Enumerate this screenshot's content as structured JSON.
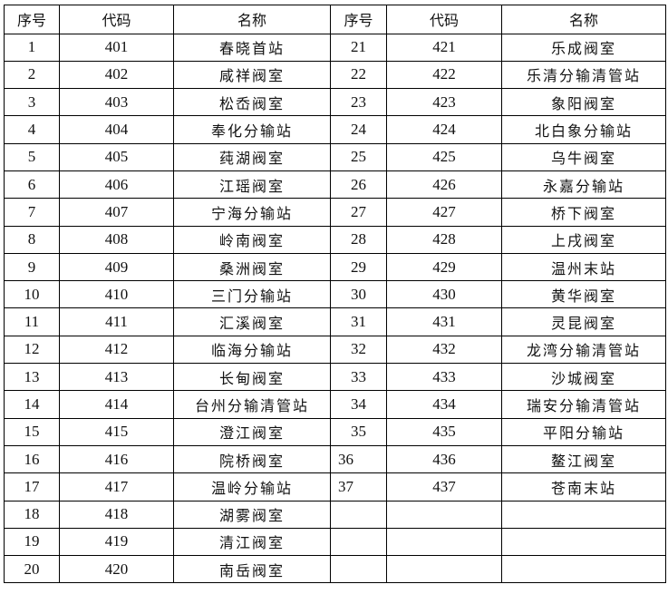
{
  "headers": [
    "序号",
    "代码",
    "名称",
    "序号",
    "代码",
    "名称"
  ],
  "rows": [
    [
      "1",
      "401",
      "春晓首站",
      "21",
      "421",
      "乐成阀室"
    ],
    [
      "2",
      "402",
      "咸祥阀室",
      "22",
      "422",
      "乐清分输清管站"
    ],
    [
      "3",
      "403",
      "松岙阀室",
      "23",
      "423",
      "象阳阀室"
    ],
    [
      "4",
      "404",
      "奉化分输站",
      "24",
      "424",
      "北白象分输站"
    ],
    [
      "5",
      "405",
      "莼湖阀室",
      "25",
      "425",
      "乌牛阀室"
    ],
    [
      "6",
      "406",
      "江瑶阀室",
      "26",
      "426",
      "永嘉分输站"
    ],
    [
      "7",
      "407",
      "宁海分输站",
      "27",
      "427",
      "桥下阀室"
    ],
    [
      "8",
      "408",
      "岭南阀室",
      "28",
      "428",
      "上戌阀室"
    ],
    [
      "9",
      "409",
      "桑洲阀室",
      "29",
      "429",
      "温州末站"
    ],
    [
      "10",
      "410",
      "三门分输站",
      "30",
      "430",
      "黄华阀室"
    ],
    [
      "11",
      "411",
      "汇溪阀室",
      "31",
      "431",
      "灵昆阀室"
    ],
    [
      "12",
      "412",
      "临海分输站",
      "32",
      "432",
      "龙湾分输清管站"
    ],
    [
      "13",
      "413",
      "长甸阀室",
      "33",
      "433",
      "沙城阀室"
    ],
    [
      "14",
      "414",
      "台州分输清管站",
      "34",
      "434",
      "瑞安分输清管站"
    ],
    [
      "15",
      "415",
      "澄江阀室",
      "35",
      "435",
      "平阳分输站"
    ],
    [
      "16",
      "416",
      "院桥阀室",
      "36",
      "436",
      "鳌江阀室"
    ],
    [
      "17",
      "417",
      "温岭分输站",
      "37",
      "437",
      "苍南末站"
    ],
    [
      "18",
      "418",
      "湖雾阀室",
      "",
      "",
      ""
    ],
    [
      "19",
      "419",
      "清江阀室",
      "",
      "",
      ""
    ],
    [
      "20",
      "420",
      "南岳阀室",
      "",
      "",
      ""
    ]
  ]
}
